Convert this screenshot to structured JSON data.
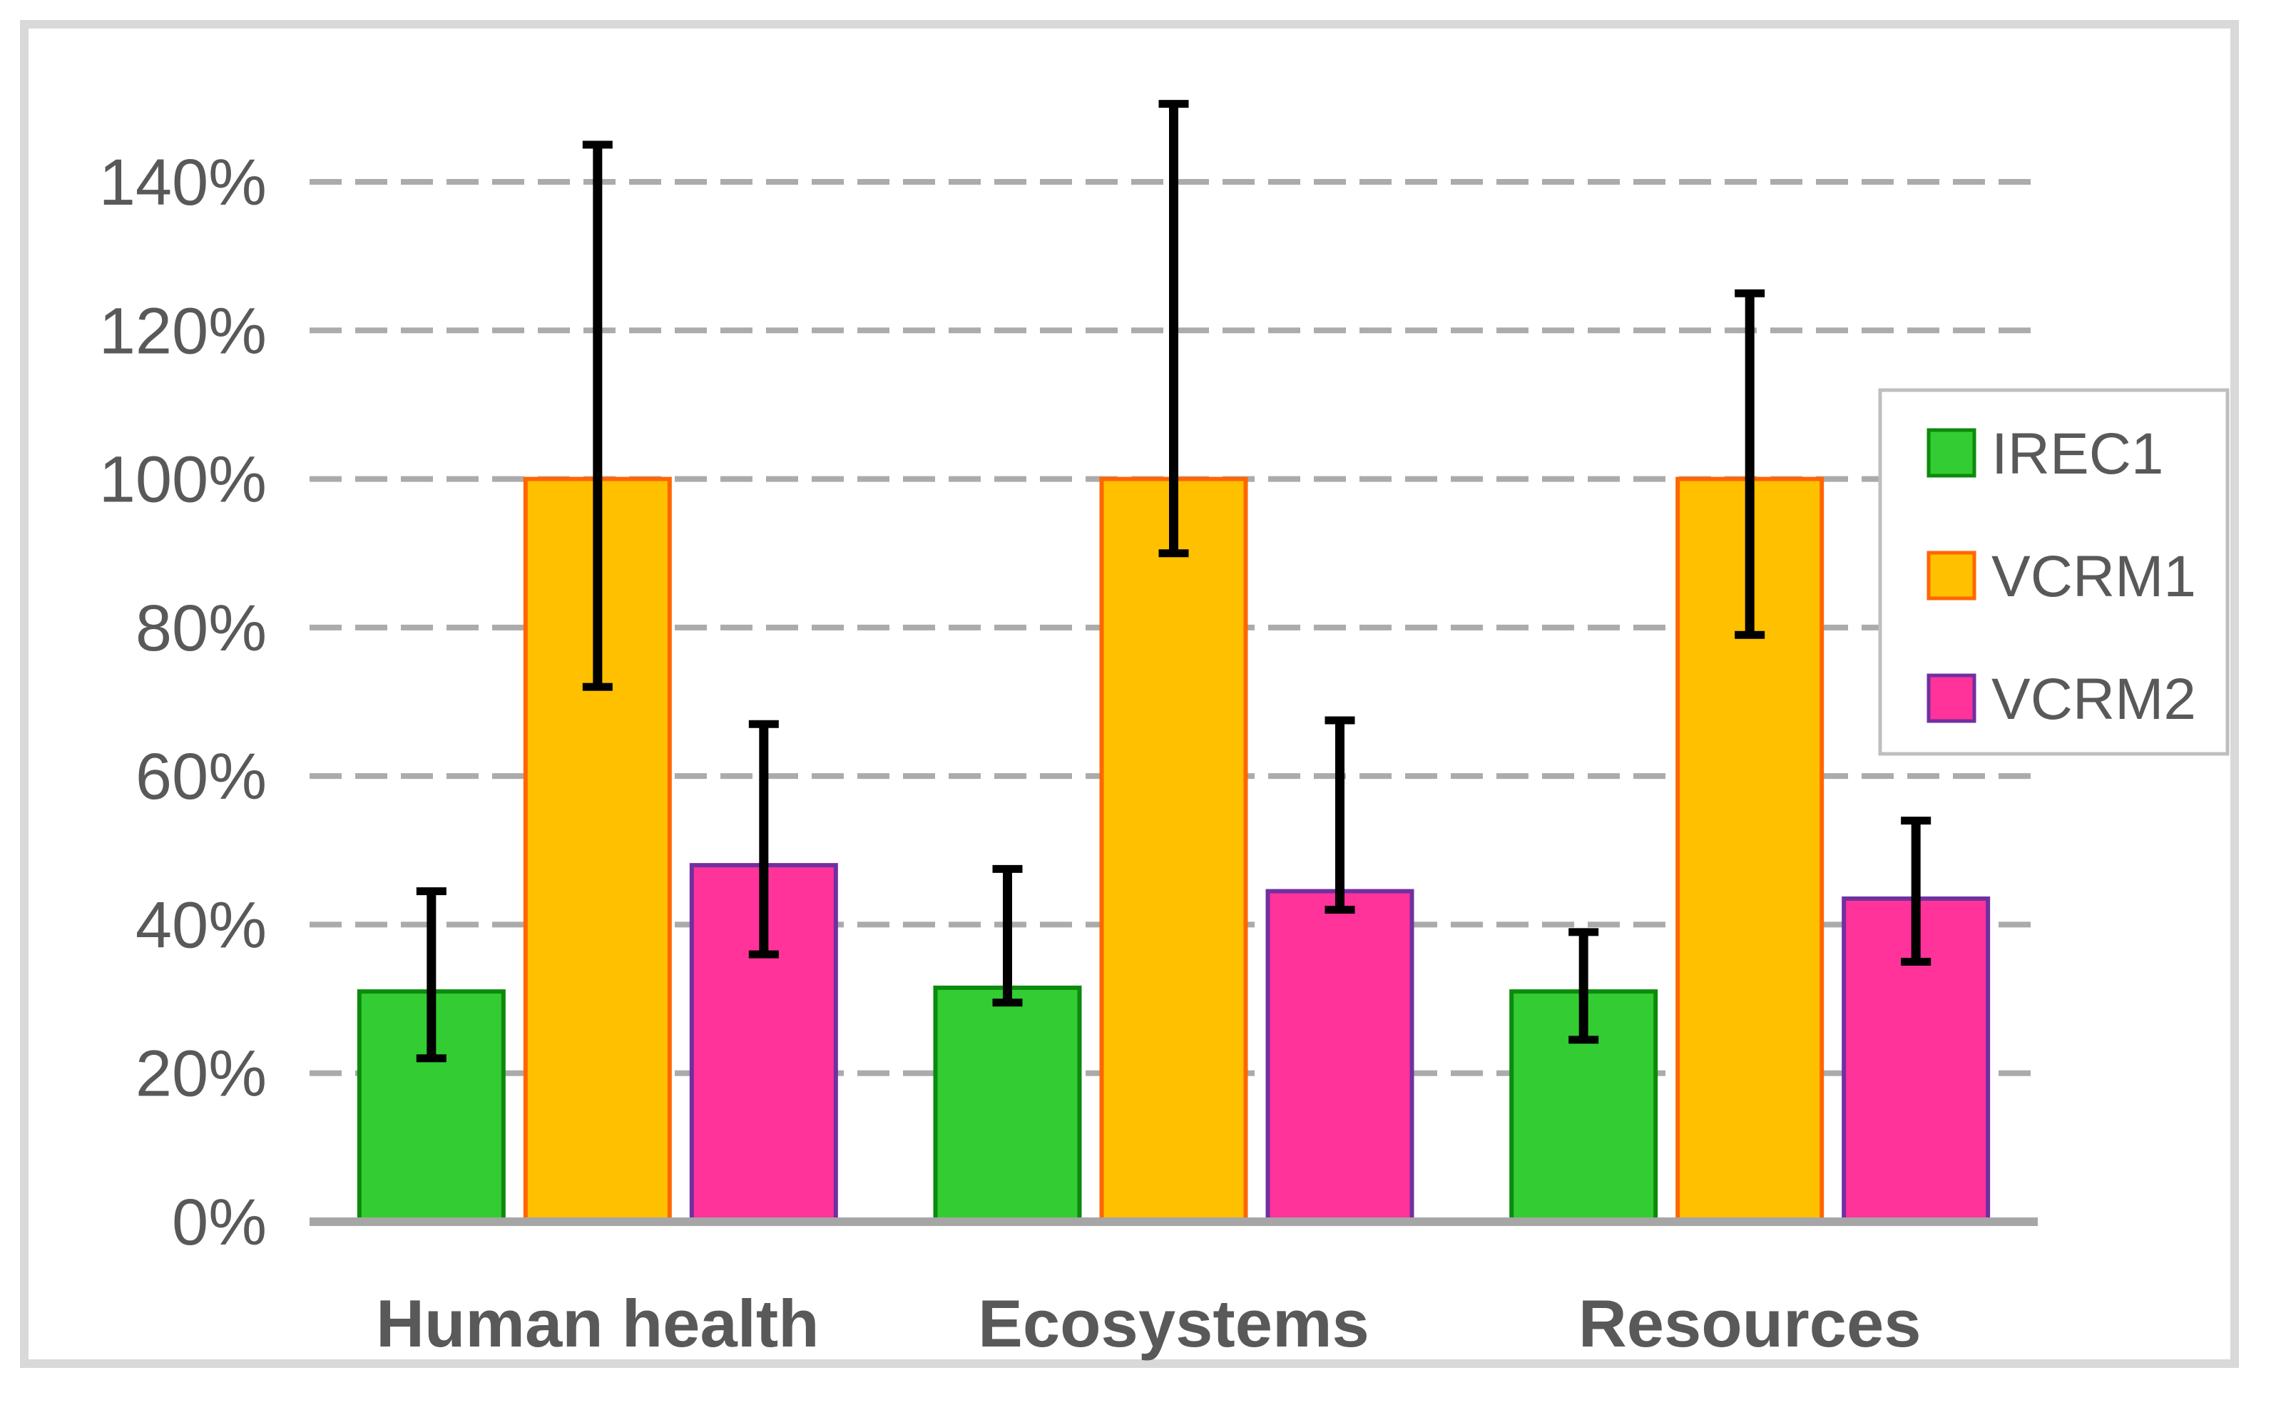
{
  "chart_data": {
    "type": "bar",
    "title": "",
    "xlabel": "",
    "ylabel": "",
    "categories": [
      "Human health",
      "Ecosystems",
      "Resources"
    ],
    "series": [
      {
        "name": "IREC1",
        "fill": "#33CC33",
        "stroke": "#0D8A0D",
        "values": [
          31,
          31.5,
          31
        ],
        "error_low": [
          22,
          29.5,
          24.5
        ],
        "error_high": [
          44.5,
          47.5,
          39
        ]
      },
      {
        "name": "VCRM1",
        "fill": "#FFC000",
        "stroke": "#FF6600",
        "values": [
          100,
          100,
          100
        ],
        "error_low": [
          72,
          90,
          79
        ],
        "error_high": [
          145,
          150.5,
          125
        ]
      },
      {
        "name": "VCRM2",
        "fill": "#FF3399",
        "stroke": "#7030A0",
        "values": [
          48,
          44.5,
          43.5
        ],
        "error_low": [
          36,
          42,
          35
        ],
        "error_high": [
          67,
          67.5,
          54
        ]
      }
    ],
    "y_axis": {
      "min": 0,
      "max": 140,
      "step": 20,
      "tick_labels": [
        "0%",
        "20%",
        "40%",
        "60%",
        "80%",
        "100%",
        "120%",
        "140%"
      ]
    },
    "ylim": [
      0,
      155
    ],
    "grid": true,
    "error_bars": true,
    "legend_position": "right-upper"
  },
  "legend": {
    "items": [
      {
        "label": "IREC1",
        "swatch_fill": "#33CC33",
        "swatch_stroke": "#0D8A0D"
      },
      {
        "label": "VCRM1",
        "swatch_fill": "#FFC000",
        "swatch_stroke": "#FF6600"
      },
      {
        "label": "VCRM2",
        "swatch_fill": "#FF3399",
        "swatch_stroke": "#7030A0"
      }
    ]
  },
  "colors": {
    "text": "#595959",
    "gridline": "#ABABAB",
    "axis_line": "#A6A6A6",
    "error_bar": "#000000",
    "frame_border": "#D9D9D9",
    "legend_border": "#BFBFBF",
    "background": "#FFFFFF"
  }
}
